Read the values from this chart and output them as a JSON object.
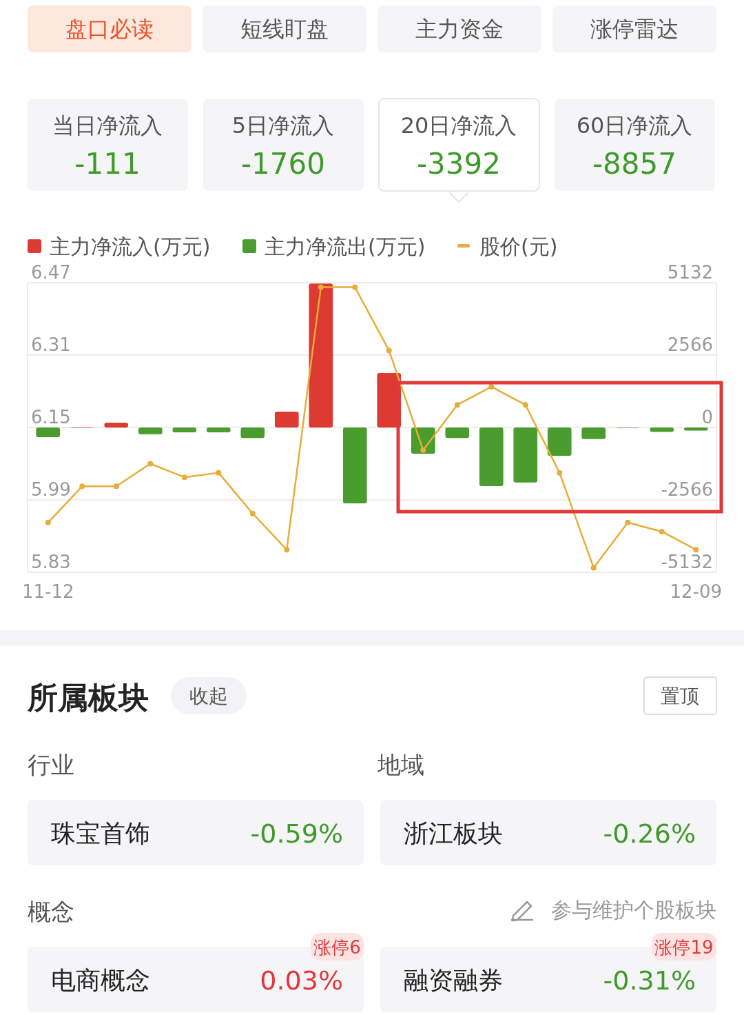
{
  "chart_data": [
    {
      "type": "other",
      "annotations": [
        "盘口必读",
        "短线盯盘",
        "主力资金",
        "涨停雷达"
      ],
      "categories": [
        "当日净流入",
        "5日净流入",
        "20日净流入",
        "60日净流入"
      ],
      "values": [
        -111,
        -1760,
        -3392,
        -8857
      ],
      "data_labels": true
    },
    {
      "type": "bar",
      "stacked": true,
      "legend": "top left",
      "grid": "y",
      "categories": [
        "11-12",
        null,
        null,
        null,
        null,
        null,
        null,
        null,
        null,
        null,
        null,
        null,
        null,
        null,
        null,
        null,
        null,
        null,
        null,
        "12-09"
      ],
      "ylim": [
        5.83,
        6.47
      ],
      "yticks": [
        5.83,
        5.99,
        6.15,
        6.31,
        6.47
      ],
      "y2lim": [
        -5132,
        5132
      ],
      "y2ticks": [
        -5132,
        -2566,
        0,
        2566,
        5132
      ],
      "series": [
        {
          "name": "主力净流入(万元)",
          "color": "#dd3b32",
          "axis": "y2",
          "values": [
            null,
            20,
            170,
            null,
            null,
            null,
            null,
            560,
            5100,
            null,
            1930,
            null,
            null,
            null,
            null,
            null,
            null,
            null,
            null,
            null
          ]
        },
        {
          "name": "主力净流出(万元)",
          "color": "#4a9c2e",
          "axis": "y2",
          "values": [
            -340,
            null,
            null,
            -240,
            -170,
            -170,
            -370,
            null,
            null,
            -2690,
            null,
            -930,
            -370,
            -2080,
            -1950,
            -1000,
            -410,
            -20,
            -150,
            -110
          ]
        },
        {
          "name": "股价(元)",
          "type": "line",
          "color": "#e8ac38",
          "marker": "circle",
          "values": [
            5.94,
            6.02,
            6.02,
            6.07,
            6.04,
            6.05,
            5.96,
            5.88,
            6.46,
            6.46,
            6.32,
            6.1,
            6.2,
            6.24,
            6.2,
            6.05,
            5.84,
            5.94,
            5.92,
            5.88
          ]
        }
      ]
    },
    {
      "type": "other",
      "title": "所属板块",
      "annotations": [
        "收起",
        "置顶",
        "行业",
        "地域",
        "概念",
        "参与维护个股板块",
        "涨停6",
        "涨停19",
        "珠宝首饰",
        "浙江板块",
        "电商概念",
        "融资融券",
        "-0.59%",
        "-0.26%",
        "0.03%",
        "-0.31%"
      ]
    }
  ]
}
